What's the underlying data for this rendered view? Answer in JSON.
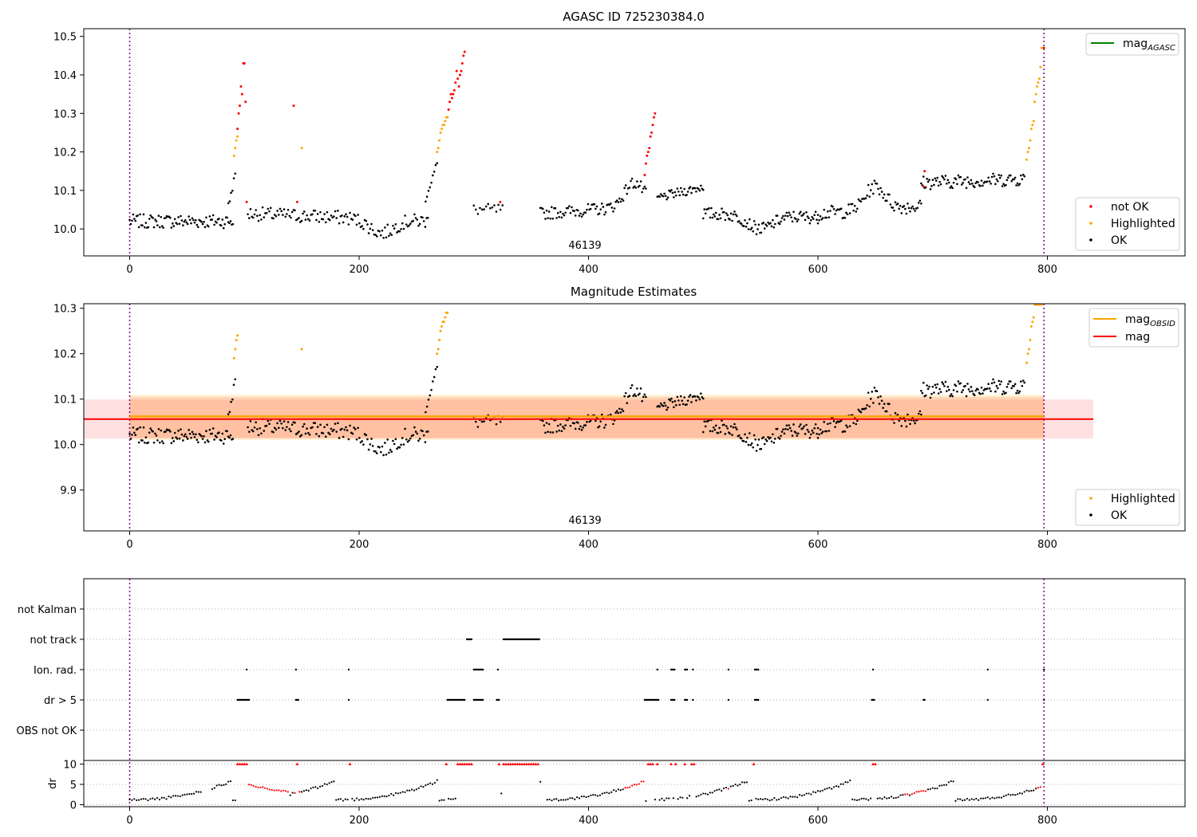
{
  "chart_data": [
    {
      "type": "scatter",
      "title": "AGASC ID 725230384.0",
      "obsid_label": "46139",
      "xlim": [
        -40,
        920
      ],
      "ylim": [
        9.93,
        10.52
      ],
      "xticks": [
        0,
        200,
        400,
        600,
        800
      ],
      "yticks": [
        10.0,
        10.1,
        10.2,
        10.3,
        10.4,
        10.5
      ],
      "ytick_labels": [
        "10.0",
        "10.1",
        "10.2",
        "10.3",
        "10.4",
        "10.5"
      ],
      "obs_boundaries": [
        0,
        797
      ],
      "legend_lines": [
        {
          "label": "mag",
          "sub": "AGASC",
          "color": "#008000"
        }
      ],
      "legend_points": [
        {
          "label": "not OK",
          "color": "#ff0000"
        },
        {
          "label": "Highlighted",
          "color": "#ffa500"
        },
        {
          "label": "OK",
          "color": "#000000"
        }
      ],
      "series": [
        {
          "name": "OK",
          "color": "#000000",
          "points_desc": "piecewise light curve",
          "segments": [
            {
              "x": [
                0,
                90
              ],
              "y": [
                10.02,
                10.02
              ],
              "noise": 0.018,
              "n": 90
            },
            {
              "x": [
                86,
                92
              ],
              "y": [
                10.06,
                10.14
              ],
              "noise": 0.01,
              "n": 6
            },
            {
              "x": [
                103,
                260
              ],
              "y": [
                10.04,
                10.02
              ],
              "noise": 0.018,
              "n": 135,
              "dip": [
                220,
                9.99
              ]
            },
            {
              "x": [
                258,
                268
              ],
              "y": [
                10.08,
                10.17
              ],
              "noise": 0.01,
              "n": 9
            },
            {
              "x": [
                300,
                325
              ],
              "y": [
                10.05,
                10.05
              ],
              "noise": 0.015,
              "n": 15
            },
            {
              "x": [
                358,
                450
              ],
              "y": [
                10.04,
                10.06
              ],
              "noise": 0.016,
              "n": 85,
              "bump": [
                440,
                10.12
              ]
            },
            {
              "x": [
                460,
                500
              ],
              "y": [
                10.08,
                10.11
              ],
              "noise": 0.012,
              "n": 40
            },
            {
              "x": [
                500,
                600
              ],
              "y": [
                10.04,
                10.03
              ],
              "noise": 0.016,
              "n": 100,
              "dip": [
                550,
                10.0
              ]
            },
            {
              "x": [
                600,
                690
              ],
              "y": [
                10.04,
                10.06
              ],
              "noise": 0.018,
              "n": 85,
              "bump": [
                650,
                10.11
              ]
            },
            {
              "x": [
                690,
                780
              ],
              "y": [
                10.12,
                10.13
              ],
              "noise": 0.018,
              "n": 90
            }
          ]
        },
        {
          "name": "Highlighted",
          "color": "#ffa500",
          "x": [
            91,
            92,
            93,
            94,
            150,
            268,
            269,
            270,
            271,
            272,
            273,
            274,
            275,
            276,
            277,
            782,
            783,
            784,
            785,
            786,
            787,
            788,
            789,
            790,
            791,
            792,
            793,
            794,
            795
          ],
          "y": [
            10.19,
            10.21,
            10.23,
            10.24,
            10.21,
            10.2,
            10.21,
            10.23,
            10.25,
            10.26,
            10.27,
            10.27,
            10.28,
            10.29,
            10.29,
            10.18,
            10.2,
            10.21,
            10.23,
            10.26,
            10.27,
            10.28,
            10.33,
            10.35,
            10.37,
            10.38,
            10.39,
            10.42,
            10.47
          ]
        },
        {
          "name": "not OK",
          "color": "#ff0000",
          "x": [
            94,
            95,
            96,
            97,
            98,
            99,
            100,
            101,
            102,
            143,
            146,
            278,
            279,
            280,
            281,
            282,
            283,
            284,
            285,
            286,
            287,
            288,
            289,
            290,
            291,
            292,
            323,
            449,
            450,
            451,
            452,
            453,
            454,
            455,
            456,
            457,
            458,
            692,
            693,
            797
          ],
          "y": [
            10.26,
            10.3,
            10.32,
            10.37,
            10.35,
            10.43,
            10.43,
            10.33,
            10.07,
            10.32,
            10.07,
            10.31,
            10.33,
            10.35,
            10.34,
            10.35,
            10.36,
            10.38,
            10.41,
            10.39,
            10.37,
            10.4,
            10.41,
            10.43,
            10.45,
            10.46,
            10.07,
            10.14,
            10.17,
            10.19,
            10.2,
            10.21,
            10.24,
            10.25,
            10.27,
            10.29,
            10.3,
            10.11,
            10.15,
            10.47
          ]
        }
      ]
    },
    {
      "type": "scatter",
      "title": "Magnitude Estimates",
      "obsid_label": "46139",
      "xlim": [
        -40,
        920
      ],
      "ylim": [
        9.81,
        10.31
      ],
      "xticks": [
        0,
        200,
        400,
        600,
        800
      ],
      "yticks": [
        9.9,
        10.0,
        10.1,
        10.2,
        10.3
      ],
      "ytick_labels": [
        "9.9",
        "10.0",
        "10.1",
        "10.2",
        "10.3"
      ],
      "obs_boundaries": [
        0,
        797
      ],
      "mag": 10.056,
      "mag_band": [
        10.013,
        10.099
      ],
      "mag_line_x": [
        -40,
        840
      ],
      "mag_obsid": 10.062,
      "mag_obsid_band_inner": [
        10.015,
        10.105
      ],
      "mag_obsid_band_outer": [
        10.01,
        10.11
      ],
      "mag_obsid_x": [
        0,
        797
      ],
      "legend_lines": [
        {
          "label": "mag",
          "sub": "OBSID",
          "color": "#ffa500"
        },
        {
          "label": "mag",
          "sub": "",
          "color": "#ff0000"
        }
      ],
      "legend_points": [
        {
          "label": "Highlighted",
          "color": "#ffa500"
        },
        {
          "label": "OK",
          "color": "#000000"
        }
      ]
    },
    {
      "type": "scatter",
      "xlim": [
        -40,
        920
      ],
      "xticks": [
        0,
        200,
        400,
        600,
        800
      ],
      "flag_rows": [
        "not Kalman",
        "not track",
        "Ion. rad.",
        "dr > 5",
        "OBS not OK"
      ],
      "flags": {
        "not track": [
          [
            294,
            298
          ],
          [
            326,
            357
          ]
        ],
        "Ion. rad.": [
          [
            102,
            102
          ],
          [
            145,
            145
          ],
          [
            191,
            191
          ],
          [
            300,
            308
          ],
          [
            321,
            321
          ],
          [
            460,
            460
          ],
          [
            472,
            475
          ],
          [
            484,
            486
          ],
          [
            491,
            491
          ],
          [
            522,
            522
          ],
          [
            545,
            548
          ],
          [
            648,
            648
          ],
          [
            748,
            748
          ],
          [
            797,
            797
          ]
        ],
        "dr > 5": [
          [
            94,
            104
          ],
          [
            145,
            147
          ],
          [
            191,
            191
          ],
          [
            277,
            292
          ],
          [
            300,
            308
          ],
          [
            320,
            322
          ],
          [
            449,
            461
          ],
          [
            472,
            475
          ],
          [
            484,
            486
          ],
          [
            491,
            491
          ],
          [
            522,
            522
          ],
          [
            545,
            548
          ],
          [
            647,
            649
          ],
          [
            692,
            693
          ],
          [
            748,
            748
          ],
          [
            797,
            797
          ]
        ],
        "OBS not OK": []
      },
      "dr_ylabel": "dr",
      "dr_yticks": [
        0,
        5,
        10
      ],
      "dr_ylim": [
        -0.5,
        10.5
      ],
      "dr_clip": 10
    }
  ]
}
